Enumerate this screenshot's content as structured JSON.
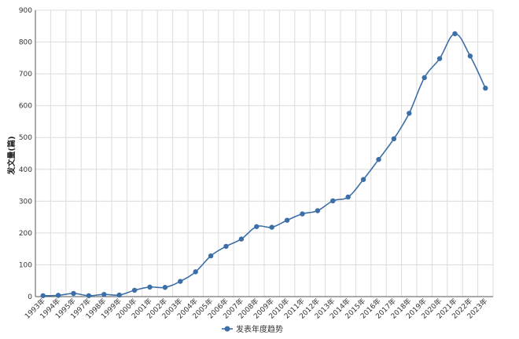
{
  "chart_data": {
    "type": "line",
    "title": "",
    "xlabel": "",
    "ylabel": "发文量(篇)",
    "ylim": [
      0,
      900
    ],
    "yticks": [
      "0",
      "100",
      "200",
      "300",
      "400",
      "500",
      "600",
      "700",
      "800",
      "900"
    ],
    "grid": true,
    "legend_position": "bottom",
    "categories": [
      "1993年",
      "1994年",
      "1995年",
      "1997年",
      "1998年",
      "1999年",
      "2000年",
      "2001年",
      "2002年",
      "2003年",
      "2004年",
      "2005年",
      "2006年",
      "2007年",
      "2008年",
      "2009年",
      "2010年",
      "2011年",
      "2012年",
      "2013年",
      "2014年",
      "2015年",
      "2016年",
      "2017年",
      "2018年",
      "2019年",
      "2020年",
      "2021年",
      "2022年",
      "2023年"
    ],
    "series": [
      {
        "name": "发表年度趋势",
        "color": "#3c6ea8",
        "values": [
          3,
          4,
          10,
          3,
          7,
          5,
          20,
          30,
          29,
          48,
          78,
          128,
          158,
          181,
          220,
          218,
          240,
          260,
          270,
          301,
          313,
          368,
          431,
          496,
          576,
          688,
          748,
          826,
          756,
          655
        ]
      }
    ]
  }
}
